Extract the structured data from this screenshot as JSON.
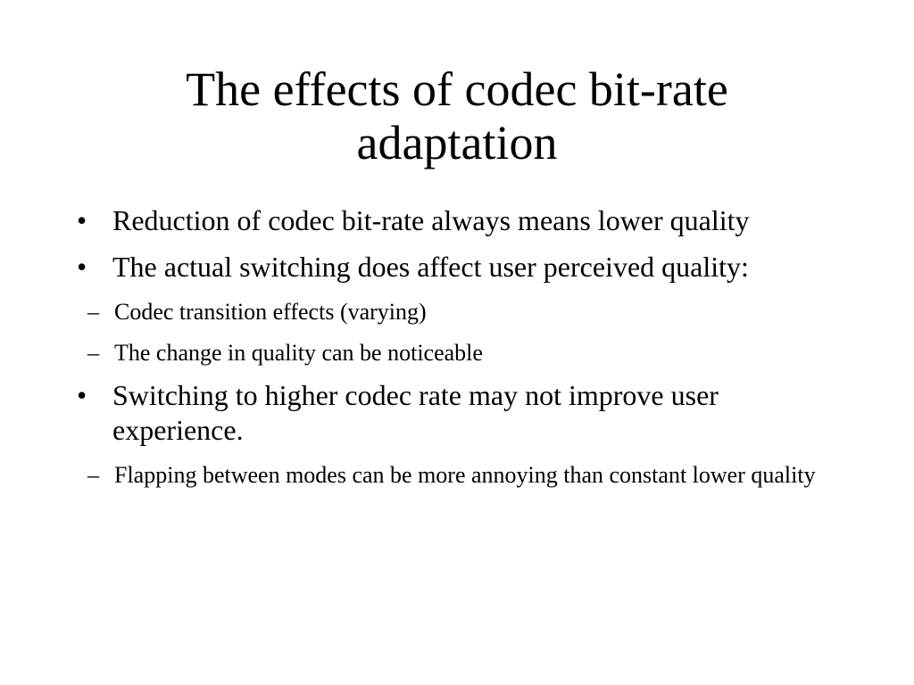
{
  "title": "The effects of codec bit-rate adaptation",
  "bullets": [
    {
      "text": "Reduction of codec bit-rate always means lower quality",
      "sub": []
    },
    {
      "text": "The actual switching does affect user perceived quality:",
      "sub": [
        "Codec transition effects (varying)",
        "The change in quality can be noticeable"
      ]
    },
    {
      "text": "Switching to higher codec rate may not improve user experience.",
      "sub": [
        "Flapping between modes can be more annoying than constant lower quality"
      ]
    }
  ]
}
